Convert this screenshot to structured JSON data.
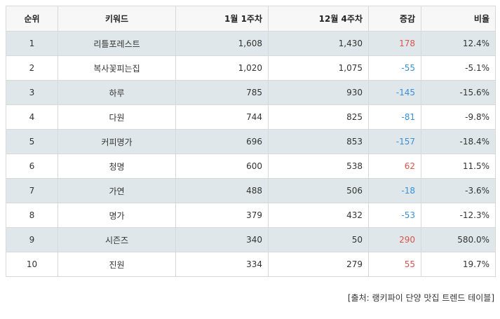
{
  "headers": [
    "순위",
    "키워드",
    "1월 1주차",
    "12월 4주차",
    "증감",
    "비율"
  ],
  "rows": [
    {
      "rank": "1",
      "keyword": "리틀포레스트",
      "w1": "1,608",
      "w2": "1,430",
      "change": "178",
      "dir": "pos",
      "ratio": "12.4%"
    },
    {
      "rank": "2",
      "keyword": "복사꽃피는집",
      "w1": "1,020",
      "w2": "1,075",
      "change": "-55",
      "dir": "neg",
      "ratio": "-5.1%"
    },
    {
      "rank": "3",
      "keyword": "하루",
      "w1": "785",
      "w2": "930",
      "change": "-145",
      "dir": "neg",
      "ratio": "-15.6%"
    },
    {
      "rank": "4",
      "keyword": "다원",
      "w1": "744",
      "w2": "825",
      "change": "-81",
      "dir": "neg",
      "ratio": "-9.8%"
    },
    {
      "rank": "5",
      "keyword": "커피명가",
      "w1": "696",
      "w2": "853",
      "change": "-157",
      "dir": "neg",
      "ratio": "-18.4%"
    },
    {
      "rank": "6",
      "keyword": "청명",
      "w1": "600",
      "w2": "538",
      "change": "62",
      "dir": "pos",
      "ratio": "11.5%"
    },
    {
      "rank": "7",
      "keyword": "가연",
      "w1": "488",
      "w2": "506",
      "change": "-18",
      "dir": "neg",
      "ratio": "-3.6%"
    },
    {
      "rank": "8",
      "keyword": "명가",
      "w1": "379",
      "w2": "432",
      "change": "-53",
      "dir": "neg",
      "ratio": "-12.3%"
    },
    {
      "rank": "9",
      "keyword": "시즌즈",
      "w1": "340",
      "w2": "50",
      "change": "290",
      "dir": "pos",
      "ratio": "580.0%"
    },
    {
      "rank": "10",
      "keyword": "진원",
      "w1": "334",
      "w2": "279",
      "change": "55",
      "dir": "pos",
      "ratio": "19.7%"
    }
  ],
  "colors": {
    "positive": "#d9534f",
    "negative": "#3b8fd9",
    "shaded_row": "#dfe7ea"
  },
  "source": "[출처: 랭키파이 단양 맛집 트렌드 테이블]"
}
